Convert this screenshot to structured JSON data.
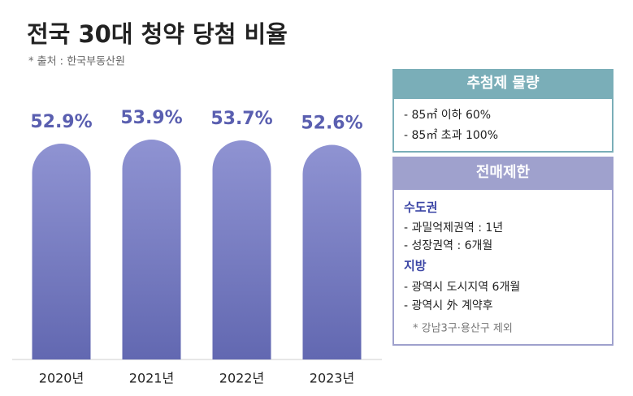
{
  "chart_data": {
    "type": "bar",
    "title": "전국 30대 청약 당첨 비율",
    "source": "* 출처 : 한국부동산원",
    "categories": [
      "2020년",
      "2021년",
      "2022년",
      "2023년"
    ],
    "values": [
      52.9,
      53.9,
      53.7,
      52.6
    ],
    "value_labels": [
      "52.9%",
      "53.9%",
      "53.7%",
      "52.6%"
    ],
    "color": "#7378bf"
  },
  "panels": [
    {
      "title": "추첨제 물량",
      "items": [
        "- 85㎡ 이하 60%",
        "- 85㎡ 초과 100%"
      ]
    },
    {
      "title": "전매제한",
      "groups": [
        {
          "heading": "수도권",
          "items": [
            "- 과밀억제권역 : 1년",
            "- 성장권역 : 6개월"
          ]
        },
        {
          "heading": "지방",
          "items": [
            "- 광역시 도시지역 6개월",
            "- 광역시 外 계약후"
          ]
        }
      ],
      "note": "* 강남3구·용산구 제외"
    }
  ]
}
